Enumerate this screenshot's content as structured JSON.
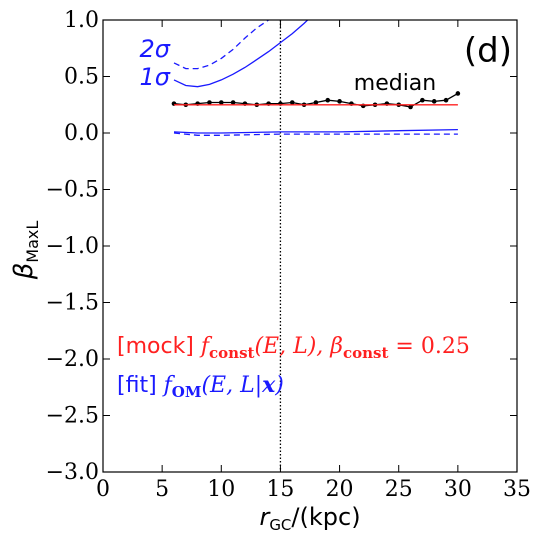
{
  "chart_data": {
    "type": "line",
    "panel_label": "(d)",
    "x_label_parts": [
      "r",
      "GC",
      "/(kpc)"
    ],
    "y_label_parts": [
      "β",
      "MaxL"
    ],
    "xlim": [
      0,
      35
    ],
    "ylim": [
      -3.0,
      1.0
    ],
    "xticks": [
      0,
      5,
      10,
      15,
      20,
      25,
      30,
      35
    ],
    "yticks": [
      {
        "value": 1.0,
        "label": "1.0"
      },
      {
        "value": 0.5,
        "label": "0.5"
      },
      {
        "value": 0.0,
        "label": "0.0"
      },
      {
        "value": -0.5,
        "label": "−0.5"
      },
      {
        "value": -1.0,
        "label": "−1.0"
      },
      {
        "value": -1.5,
        "label": "−1.5"
      },
      {
        "value": -2.0,
        "label": "−2.0"
      },
      {
        "value": -2.5,
        "label": "−2.5"
      },
      {
        "value": -3.0,
        "label": "−3.0"
      }
    ],
    "vline": 15,
    "series": [
      {
        "name": "median",
        "color": "#000000",
        "dashed": false,
        "markers": true,
        "x": [
          6,
          7,
          8,
          9,
          10,
          11,
          12,
          13,
          14,
          15,
          16,
          17,
          18,
          19,
          20,
          21,
          22,
          23,
          24,
          25,
          26,
          27,
          28,
          29,
          30
        ],
        "values": [
          0.26,
          0.25,
          0.26,
          0.27,
          0.27,
          0.27,
          0.26,
          0.25,
          0.26,
          0.26,
          0.27,
          0.25,
          0.27,
          0.29,
          0.28,
          0.26,
          0.24,
          0.25,
          0.26,
          0.25,
          0.23,
          0.29,
          0.28,
          0.29,
          0.35
        ]
      },
      {
        "name": "1σ",
        "color": "#1a1aff",
        "dashed": false,
        "markers": false,
        "x": [
          6,
          7,
          8,
          9,
          10,
          11,
          12,
          13,
          14,
          15,
          16,
          17,
          17.3
        ],
        "values": [
          0.47,
          0.42,
          0.41,
          0.43,
          0.47,
          0.52,
          0.58,
          0.65,
          0.72,
          0.8,
          0.88,
          0.97,
          1.0
        ]
      },
      {
        "name": "2σ",
        "color": "#1a1aff",
        "dashed": true,
        "markers": false,
        "x": [
          6,
          7,
          8,
          9,
          10,
          11,
          12,
          13,
          14
        ],
        "values": [
          0.62,
          0.57,
          0.57,
          0.6,
          0.66,
          0.74,
          0.84,
          0.93,
          1.0
        ]
      },
      {
        "color": "#1a1aff",
        "dashed": false,
        "markers": false,
        "x": [
          6,
          8,
          10,
          15,
          20,
          25,
          30
        ],
        "values": [
          0.01,
          0.0,
          0.0,
          0.01,
          0.01,
          0.02,
          0.03
        ]
      },
      {
        "color": "#1a1aff",
        "dashed": true,
        "markers": false,
        "x": [
          6,
          8,
          10,
          15,
          20,
          25,
          30
        ],
        "values": [
          0.0,
          -0.02,
          -0.02,
          -0.01,
          -0.01,
          -0.01,
          -0.01
        ]
      },
      {
        "color": "#ff2020",
        "dashed": false,
        "markers": false,
        "x": [
          6,
          30
        ],
        "values": [
          0.25,
          0.25
        ]
      }
    ],
    "annotations": [
      {
        "color": "#ff2020",
        "parts": [
          "[mock]",
          " f",
          "const",
          "(E, L),  β",
          "const",
          " = 0.25"
        ]
      },
      {
        "color": "#1a1aff",
        "parts": [
          "[fit]",
          " f",
          "OM",
          "(E, L|",
          "x",
          ")"
        ]
      }
    ]
  }
}
